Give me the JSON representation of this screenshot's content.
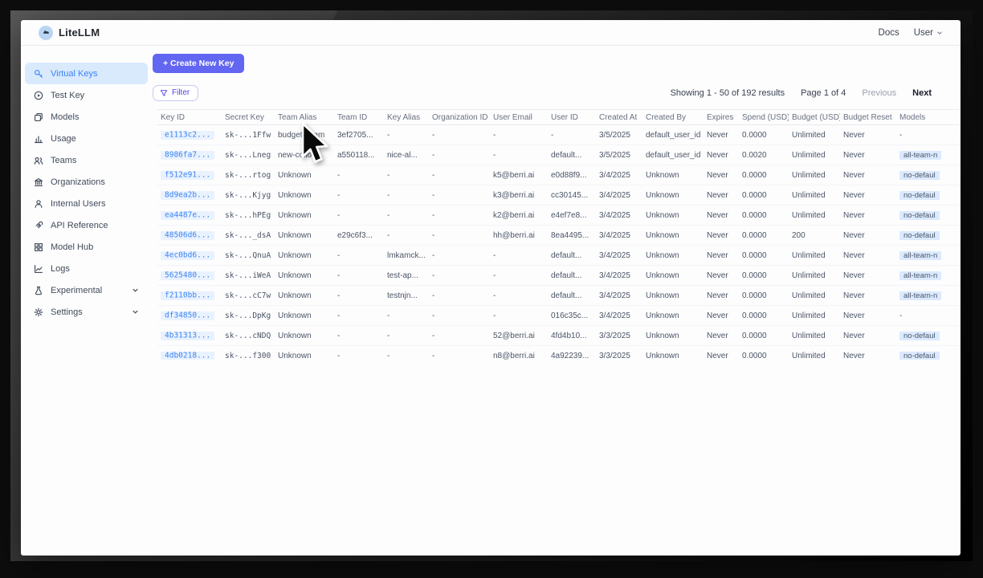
{
  "header": {
    "brand": "LiteLLM",
    "docs_label": "Docs",
    "user_label": "User"
  },
  "sidebar": {
    "items": [
      {
        "label": "Virtual Keys",
        "icon": "key-icon",
        "active": true,
        "chevron": false
      },
      {
        "label": "Test Key",
        "icon": "play-circle-icon",
        "active": false,
        "chevron": false
      },
      {
        "label": "Models",
        "icon": "cube-icon",
        "active": false,
        "chevron": false
      },
      {
        "label": "Usage",
        "icon": "bar-chart-icon",
        "active": false,
        "chevron": false
      },
      {
        "label": "Teams",
        "icon": "team-icon",
        "active": false,
        "chevron": false
      },
      {
        "label": "Organizations",
        "icon": "bank-icon",
        "active": false,
        "chevron": false
      },
      {
        "label": "Internal Users",
        "icon": "user-icon",
        "active": false,
        "chevron": false
      },
      {
        "label": "API Reference",
        "icon": "link-icon",
        "active": false,
        "chevron": false
      },
      {
        "label": "Model Hub",
        "icon": "grid-icon",
        "active": false,
        "chevron": false
      },
      {
        "label": "Logs",
        "icon": "line-chart-icon",
        "active": false,
        "chevron": false
      },
      {
        "label": "Experimental",
        "icon": "flask-icon",
        "active": false,
        "chevron": true
      },
      {
        "label": "Settings",
        "icon": "gear-icon",
        "active": false,
        "chevron": true
      }
    ]
  },
  "toolbar": {
    "create_button": "+ Create New Key",
    "filter_button": "Filter"
  },
  "pagination": {
    "showing": "Showing 1 - 50 of 192 results",
    "page": "Page 1 of 4",
    "previous": "Previous",
    "next": "Next"
  },
  "table": {
    "columns": [
      "Key ID",
      "Secret Key",
      "Team Alias",
      "Team ID",
      "Key Alias",
      "Organization ID",
      "User Email",
      "User ID",
      "Created At",
      "Created By",
      "Expires",
      "Spend (USD)",
      "Budget (USD)",
      "Budget Reset",
      "Models"
    ],
    "rows": [
      [
        "e1113c2...",
        "sk-...1Ffw",
        "budget_team",
        "3ef2705...",
        "-",
        "-",
        "-",
        "-",
        "3/5/2025",
        "default_user_id",
        "Never",
        "0.0000",
        "Unlimited",
        "Never",
        "-"
      ],
      [
        "8986fa7...",
        "sk-...Lneg",
        "new-collou...",
        "a550118...",
        "nice-al...",
        "-",
        "-",
        "default...",
        "3/5/2025",
        "default_user_id",
        "Never",
        "0.0020",
        "Unlimited",
        "Never",
        "all-team-n"
      ],
      [
        "f512e91...",
        "sk-...rtog",
        "Unknown",
        "-",
        "-",
        "-",
        "k5@berri.ai",
        "e0d88f9...",
        "3/4/2025",
        "Unknown",
        "Never",
        "0.0000",
        "Unlimited",
        "Never",
        "no-defaul"
      ],
      [
        "8d9ea2b...",
        "sk-...Kjyg",
        "Unknown",
        "-",
        "-",
        "-",
        "k3@berri.ai",
        "cc30145...",
        "3/4/2025",
        "Unknown",
        "Never",
        "0.0000",
        "Unlimited",
        "Never",
        "no-defaul"
      ],
      [
        "ea4487e...",
        "sk-...hPEg",
        "Unknown",
        "-",
        "-",
        "-",
        "k2@berri.ai",
        "e4ef7e8...",
        "3/4/2025",
        "Unknown",
        "Never",
        "0.0000",
        "Unlimited",
        "Never",
        "no-defaul"
      ],
      [
        "48506d6...",
        "sk-..._dsA",
        "Unknown",
        "e29c6f3...",
        "-",
        "-",
        "hh@berri.ai",
        "8ea4495...",
        "3/4/2025",
        "Unknown",
        "Never",
        "0.0000",
        "200",
        "Never",
        "no-defaul"
      ],
      [
        "4ec0bd6...",
        "sk-...QnuA",
        "Unknown",
        "-",
        "lmkamck...",
        "-",
        "-",
        "default...",
        "3/4/2025",
        "Unknown",
        "Never",
        "0.0000",
        "Unlimited",
        "Never",
        "all-team-n"
      ],
      [
        "5625480...",
        "sk-...iWeA",
        "Unknown",
        "-",
        "test-ap...",
        "-",
        "-",
        "default...",
        "3/4/2025",
        "Unknown",
        "Never",
        "0.0000",
        "Unlimited",
        "Never",
        "all-team-n"
      ],
      [
        "f2110bb...",
        "sk-...cC7w",
        "Unknown",
        "-",
        "testnjn...",
        "-",
        "-",
        "default...",
        "3/4/2025",
        "Unknown",
        "Never",
        "0.0000",
        "Unlimited",
        "Never",
        "all-team-n"
      ],
      [
        "df34850...",
        "sk-...DpKg",
        "Unknown",
        "-",
        "-",
        "-",
        "-",
        "016c35c...",
        "3/4/2025",
        "Unknown",
        "Never",
        "0.0000",
        "Unlimited",
        "Never",
        "-"
      ],
      [
        "4b31313...",
        "sk-...cNDQ",
        "Unknown",
        "-",
        "-",
        "-",
        "52@berri.ai",
        "4fd4b10...",
        "3/3/2025",
        "Unknown",
        "Never",
        "0.0000",
        "Unlimited",
        "Never",
        "no-defaul"
      ],
      [
        "4db0218...",
        "sk-...f300",
        "Unknown",
        "-",
        "-",
        "-",
        "n8@berri.ai",
        "4a92239...",
        "3/3/2025",
        "Unknown",
        "Never",
        "0.0000",
        "Unlimited",
        "Never",
        "no-defaul"
      ]
    ]
  },
  "colors": {
    "accent_purple": "#6366f1",
    "active_blue": "#3c83f6",
    "active_bg": "#d9eafc",
    "keyid_bg": "#e9f2fe",
    "badge_bg": "#dbeafe"
  }
}
